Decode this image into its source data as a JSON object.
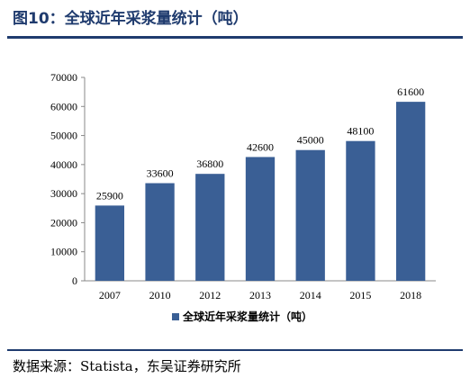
{
  "figure": {
    "title": "图10：全球近年采浆量统计（吨）",
    "source": "数据来源：Statista，东吴证券研究所"
  },
  "chart_data": {
    "type": "bar",
    "categories": [
      "2007",
      "2010",
      "2012",
      "2013",
      "2014",
      "2015",
      "2018"
    ],
    "series": [
      {
        "name": "全球近年采浆量统计（吨）",
        "values": [
          25900,
          33600,
          36800,
          42600,
          45000,
          48100,
          61600
        ],
        "color": "#3a5f95"
      }
    ],
    "ylim": [
      0,
      70000
    ],
    "yticks": [
      0,
      10000,
      20000,
      30000,
      40000,
      50000,
      60000,
      70000
    ],
    "grid": false,
    "legend": "bottom"
  }
}
